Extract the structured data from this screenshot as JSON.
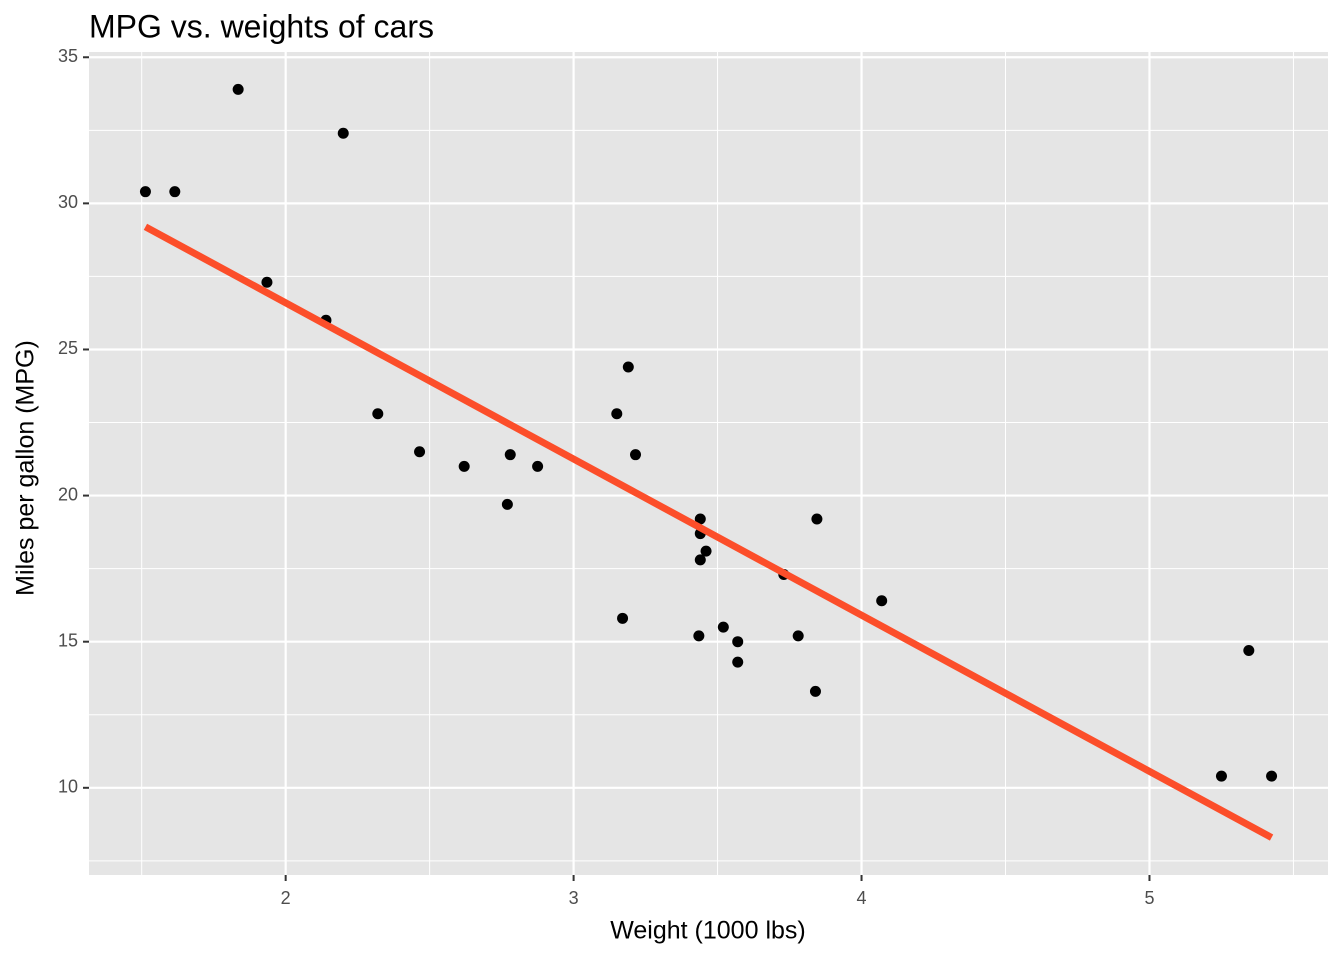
{
  "chart_data": {
    "type": "scatter",
    "title": "MPG vs. weights of cars",
    "x_label": "Weight (1000 lbs)",
    "y_label": "Miles per gallon (MPG)",
    "x": [
      2.62,
      2.875,
      2.32,
      3.215,
      3.44,
      3.46,
      3.57,
      3.19,
      3.15,
      3.44,
      3.44,
      4.07,
      3.73,
      3.78,
      5.25,
      5.424,
      5.345,
      2.2,
      1.615,
      1.835,
      2.465,
      3.52,
      3.435,
      3.84,
      3.845,
      1.935,
      2.14,
      1.513,
      3.17,
      2.77,
      3.57,
      2.78
    ],
    "y": [
      21.0,
      21.0,
      22.8,
      21.4,
      18.7,
      18.1,
      14.3,
      24.4,
      22.8,
      19.2,
      17.8,
      16.4,
      17.3,
      15.2,
      10.4,
      10.4,
      14.7,
      32.4,
      30.4,
      33.9,
      21.5,
      15.5,
      15.2,
      13.3,
      19.2,
      27.3,
      26.0,
      30.4,
      15.8,
      19.7,
      15.0,
      21.4
    ],
    "color": "#000000",
    "fit_line": {
      "x": [
        1.513,
        5.424
      ],
      "y": [
        29.199,
        8.296
      ],
      "color": "#fc4e2a"
    },
    "xlim": [
      1.317,
      5.62
    ],
    "ylim": [
      7.016,
      35.18
    ],
    "xticks": [
      2,
      3,
      4,
      5
    ],
    "yticks": [
      10,
      15,
      20,
      25,
      30,
      35
    ],
    "minor_xticks": [
      1.5,
      2.5,
      3.5,
      4.5,
      5.5
    ],
    "minor_yticks": [
      7.5,
      12.5,
      17.5,
      22.5,
      27.5,
      32.5
    ],
    "grid": true
  }
}
